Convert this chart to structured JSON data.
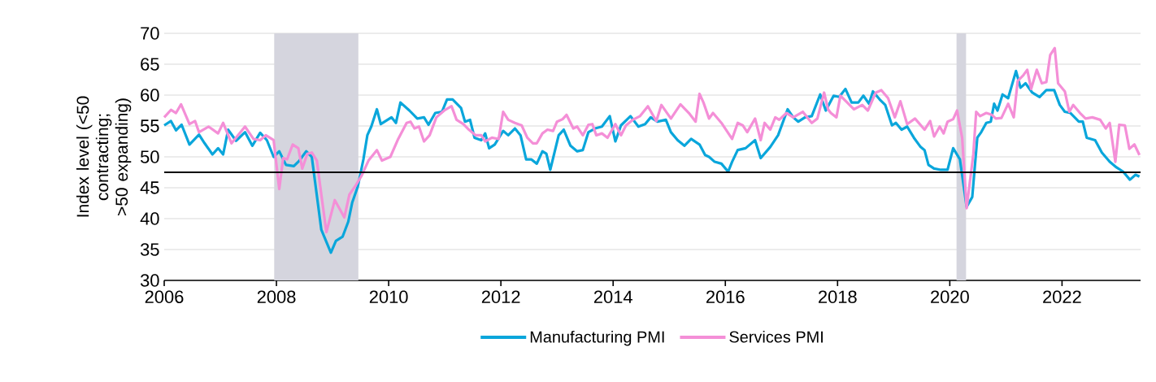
{
  "chart_data": {
    "type": "line",
    "ylabel": "Index level (<50 contracting; >50 expanding)",
    "xlim": [
      2006,
      2023.4
    ],
    "xticks": [
      2006,
      2008,
      2010,
      2012,
      2014,
      2016,
      2018,
      2020,
      2022
    ],
    "ylim": [
      30,
      70
    ],
    "yticks": [
      30,
      35,
      40,
      45,
      50,
      55,
      60,
      65,
      70
    ],
    "grid": "y",
    "legend": "bottom",
    "line_style": "solid",
    "marker": "none",
    "bands": [
      {
        "axis": "x",
        "from": 2007.96,
        "to": 2009.46,
        "color": "#d5d5de"
      },
      {
        "axis": "x",
        "from": 2020.12,
        "to": 2020.29,
        "color": "#d5d5de"
      }
    ],
    "ref_lines": [
      {
        "axis": "y",
        "value": 47.5,
        "color": "#000000"
      }
    ],
    "series": [
      {
        "name": "Manufacturing PMI",
        "color": "#0aa6db",
        "x": [
          2006.0,
          2006.12,
          2006.21,
          2006.31,
          2006.45,
          2006.62,
          2006.72,
          2006.86,
          2006.96,
          2007.05,
          2007.14,
          2007.28,
          2007.44,
          2007.57,
          2007.71,
          2007.83,
          2007.95,
          2008.05,
          2008.17,
          2008.31,
          2008.41,
          2008.53,
          2008.63,
          2008.8,
          2008.97,
          2009.06,
          2009.18,
          2009.28,
          2009.35,
          2009.45,
          2009.55,
          2009.62,
          2009.69,
          2009.79,
          2009.86,
          2010.05,
          2010.13,
          2010.21,
          2010.37,
          2010.51,
          2010.63,
          2010.71,
          2010.83,
          2010.95,
          2011.04,
          2011.14,
          2011.29,
          2011.36,
          2011.45,
          2011.53,
          2011.65,
          2011.72,
          2011.79,
          2011.89,
          2012.04,
          2012.13,
          2012.25,
          2012.35,
          2012.45,
          2012.54,
          2012.64,
          2012.74,
          2012.81,
          2012.88,
          2013.03,
          2013.12,
          2013.24,
          2013.36,
          2013.46,
          2013.56,
          2013.68,
          2013.8,
          2013.94,
          2014.04,
          2014.14,
          2014.31,
          2014.45,
          2014.57,
          2014.67,
          2014.79,
          2014.94,
          2015.03,
          2015.15,
          2015.27,
          2015.39,
          2015.54,
          2015.64,
          2015.71,
          2015.81,
          2015.93,
          2016.05,
          2016.12,
          2016.22,
          2016.36,
          2016.53,
          2016.63,
          2016.8,
          2016.94,
          2017.11,
          2017.21,
          2017.3,
          2017.42,
          2017.54,
          2017.69,
          2017.79,
          2017.93,
          2018.03,
          2018.14,
          2018.25,
          2018.37,
          2018.46,
          2018.56,
          2018.63,
          2018.75,
          2018.85,
          2018.97,
          2019.04,
          2019.14,
          2019.24,
          2019.36,
          2019.48,
          2019.55,
          2019.62,
          2019.72,
          2019.84,
          2019.96,
          2020.06,
          2020.18,
          2020.3,
          2020.4,
          2020.49,
          2020.56,
          2020.65,
          2020.73,
          2020.79,
          2020.85,
          2020.94,
          2021.04,
          2021.18,
          2021.26,
          2021.35,
          2021.47,
          2021.6,
          2021.72,
          2021.86,
          2021.96,
          2022.05,
          2022.15,
          2022.3,
          2022.37,
          2022.44,
          2022.59,
          2022.71,
          2022.85,
          2022.97,
          2023.09,
          2023.21,
          2023.31,
          2023.38
        ],
        "values": [
          55.1,
          55.8,
          54.3,
          55.2,
          52.0,
          53.6,
          52.2,
          50.4,
          51.4,
          50.4,
          54.4,
          52.6,
          54.0,
          51.8,
          53.9,
          52.7,
          50.0,
          50.9,
          48.7,
          48.5,
          49.4,
          50.9,
          50.0,
          38.2,
          34.5,
          36.4,
          37.1,
          39.5,
          42.6,
          45.2,
          49.6,
          53.5,
          54.9,
          57.7,
          55.3,
          56.4,
          55.5,
          58.8,
          57.5,
          56.2,
          56.4,
          55.2,
          57.1,
          57.3,
          59.3,
          59.3,
          57.9,
          55.7,
          56.0,
          53.1,
          52.7,
          53.8,
          51.4,
          52.0,
          54.2,
          53.5,
          54.6,
          53.5,
          49.6,
          49.6,
          48.9,
          50.9,
          50.5,
          47.9,
          53.5,
          54.4,
          51.8,
          50.9,
          51.1,
          54.0,
          54.6,
          54.9,
          56.6,
          52.5,
          55.1,
          56.6,
          54.9,
          55.3,
          56.4,
          55.7,
          56.0,
          54.0,
          52.7,
          51.8,
          52.9,
          52.0,
          50.3,
          50.0,
          49.2,
          48.9,
          47.6,
          49.2,
          51.1,
          51.4,
          52.7,
          49.8,
          51.6,
          53.5,
          57.7,
          56.4,
          55.7,
          56.4,
          56.6,
          60.1,
          57.5,
          59.9,
          59.7,
          61.0,
          58.8,
          58.8,
          59.9,
          58.6,
          60.6,
          59.3,
          58.4,
          55.1,
          55.5,
          54.4,
          54.9,
          53.1,
          51.6,
          51.1,
          48.7,
          48.1,
          47.9,
          47.9,
          51.4,
          49.6,
          41.9,
          43.5,
          53.1,
          54.0,
          55.5,
          55.7,
          58.6,
          57.5,
          60.1,
          59.5,
          63.9,
          61.2,
          61.9,
          60.4,
          59.7,
          60.8,
          60.8,
          58.4,
          57.3,
          57.1,
          55.7,
          55.7,
          53.1,
          52.7,
          50.7,
          49.2,
          48.3,
          47.6,
          46.3,
          47.1,
          46.8
        ]
      },
      {
        "name": "Services PMI",
        "color": "#f48fd7",
        "x": [
          2006.0,
          2006.12,
          2006.21,
          2006.3,
          2006.45,
          2006.55,
          2006.62,
          2006.79,
          2006.96,
          2007.05,
          2007.2,
          2007.44,
          2007.59,
          2007.71,
          2007.81,
          2007.95,
          2008.05,
          2008.12,
          2008.19,
          2008.29,
          2008.39,
          2008.46,
          2008.55,
          2008.63,
          2008.72,
          2008.8,
          2008.89,
          2009.04,
          2009.21,
          2009.3,
          2009.4,
          2009.52,
          2009.64,
          2009.79,
          2009.88,
          2010.03,
          2010.17,
          2010.32,
          2010.39,
          2010.46,
          2010.54,
          2010.63,
          2010.73,
          2010.85,
          2010.99,
          2011.12,
          2011.21,
          2011.33,
          2011.43,
          2011.55,
          2011.65,
          2011.72,
          2011.84,
          2011.96,
          2012.04,
          2012.13,
          2012.25,
          2012.37,
          2012.47,
          2012.57,
          2012.64,
          2012.74,
          2012.83,
          2012.93,
          2013.0,
          2013.1,
          2013.17,
          2013.29,
          2013.36,
          2013.46,
          2013.56,
          2013.63,
          2013.7,
          2013.8,
          2013.9,
          2014.04,
          2014.14,
          2014.23,
          2014.35,
          2014.48,
          2014.62,
          2014.77,
          2014.86,
          2015.03,
          2015.2,
          2015.35,
          2015.47,
          2015.54,
          2015.61,
          2015.71,
          2015.78,
          2015.93,
          2016.12,
          2016.22,
          2016.31,
          2016.39,
          2016.53,
          2016.63,
          2016.7,
          2016.8,
          2016.89,
          2016.96,
          2017.09,
          2017.21,
          2017.38,
          2017.54,
          2017.64,
          2017.76,
          2017.83,
          2017.88,
          2017.98,
          2018.05,
          2018.15,
          2018.29,
          2018.44,
          2018.54,
          2018.68,
          2018.78,
          2018.9,
          2019.02,
          2019.12,
          2019.24,
          2019.38,
          2019.55,
          2019.65,
          2019.72,
          2019.82,
          2019.89,
          2019.96,
          2020.06,
          2020.13,
          2020.22,
          2020.3,
          2020.42,
          2020.47,
          2020.54,
          2020.65,
          2020.75,
          2020.82,
          2020.92,
          2021.04,
          2021.14,
          2021.21,
          2021.31,
          2021.38,
          2021.45,
          2021.55,
          2021.64,
          2021.72,
          2021.79,
          2021.87,
          2021.93,
          2022.05,
          2022.13,
          2022.2,
          2022.32,
          2022.42,
          2022.54,
          2022.68,
          2022.78,
          2022.85,
          2022.95,
          2023.02,
          2023.12,
          2023.2,
          2023.29,
          2023.38
        ],
        "values": [
          56.4,
          57.6,
          57.1,
          58.5,
          55.3,
          55.8,
          54.0,
          54.9,
          53.8,
          55.5,
          52.2,
          54.9,
          52.9,
          52.7,
          53.5,
          52.7,
          44.8,
          49.8,
          49.6,
          52.0,
          51.4,
          48.1,
          50.5,
          50.7,
          49.4,
          43.9,
          37.8,
          43.0,
          40.2,
          43.9,
          45.2,
          47.0,
          49.4,
          51.1,
          49.4,
          50.0,
          52.9,
          55.5,
          55.7,
          54.6,
          54.9,
          52.5,
          53.5,
          56.4,
          57.5,
          58.2,
          56.0,
          55.3,
          54.4,
          53.5,
          53.5,
          52.5,
          53.1,
          52.9,
          57.3,
          56.0,
          55.5,
          55.1,
          53.1,
          52.2,
          52.2,
          53.8,
          54.4,
          54.2,
          55.7,
          56.1,
          56.8,
          54.6,
          54.9,
          53.5,
          55.2,
          55.3,
          53.5,
          53.8,
          53.1,
          55.3,
          53.5,
          55.1,
          56.0,
          56.6,
          58.2,
          55.8,
          58.4,
          56.2,
          58.5,
          57.1,
          55.7,
          60.2,
          58.8,
          56.2,
          57.1,
          55.5,
          52.9,
          55.5,
          55.1,
          54.0,
          56.2,
          52.7,
          55.5,
          54.4,
          56.4,
          56.0,
          57.1,
          56.4,
          57.3,
          55.5,
          56.2,
          60.4,
          57.7,
          57.1,
          56.4,
          59.9,
          59.0,
          57.7,
          58.4,
          57.5,
          60.4,
          60.8,
          59.5,
          56.4,
          59.0,
          55.3,
          56.2,
          54.4,
          55.8,
          53.3,
          54.9,
          53.8,
          55.7,
          56.1,
          57.5,
          53.1,
          41.7,
          50.5,
          57.3,
          56.6,
          57.1,
          56.8,
          56.2,
          56.3,
          58.6,
          56.4,
          62.3,
          63.2,
          64.1,
          61.0,
          64.1,
          61.9,
          62.1,
          66.5,
          67.6,
          61.9,
          60.6,
          57.3,
          58.4,
          57.1,
          56.2,
          56.4,
          56.0,
          54.6,
          55.5,
          49.2,
          55.2,
          55.1,
          51.3,
          52.0,
          50.3
        ]
      }
    ]
  }
}
